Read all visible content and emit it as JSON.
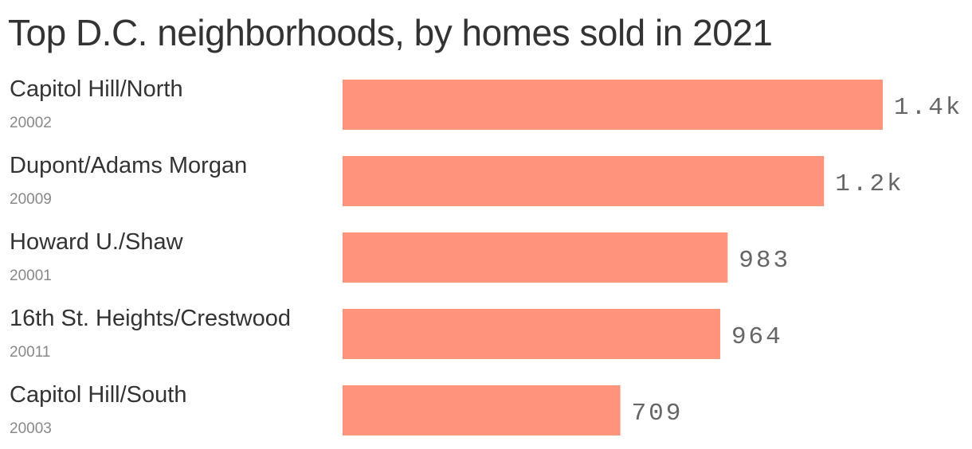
{
  "chart_data": {
    "type": "bar",
    "orientation": "horizontal",
    "title": "Top D.C. neighborhoods, by homes sold in 2021",
    "categories": [
      "Capitol Hill/North",
      "Dupont/Adams Morgan",
      "Howard U./Shaw",
      "16th St. Heights/Crestwood",
      "Capitol Hill/South"
    ],
    "subcategories": [
      "20002",
      "20009",
      "20001",
      "20011",
      "20003"
    ],
    "values": [
      1379,
      1229,
      983,
      964,
      709
    ],
    "data_labels": [
      "1.4k",
      "1.2k",
      "983",
      "964",
      "709"
    ],
    "xlim": [
      0,
      1379
    ],
    "grid": false,
    "bar_color": "#ff937b"
  }
}
